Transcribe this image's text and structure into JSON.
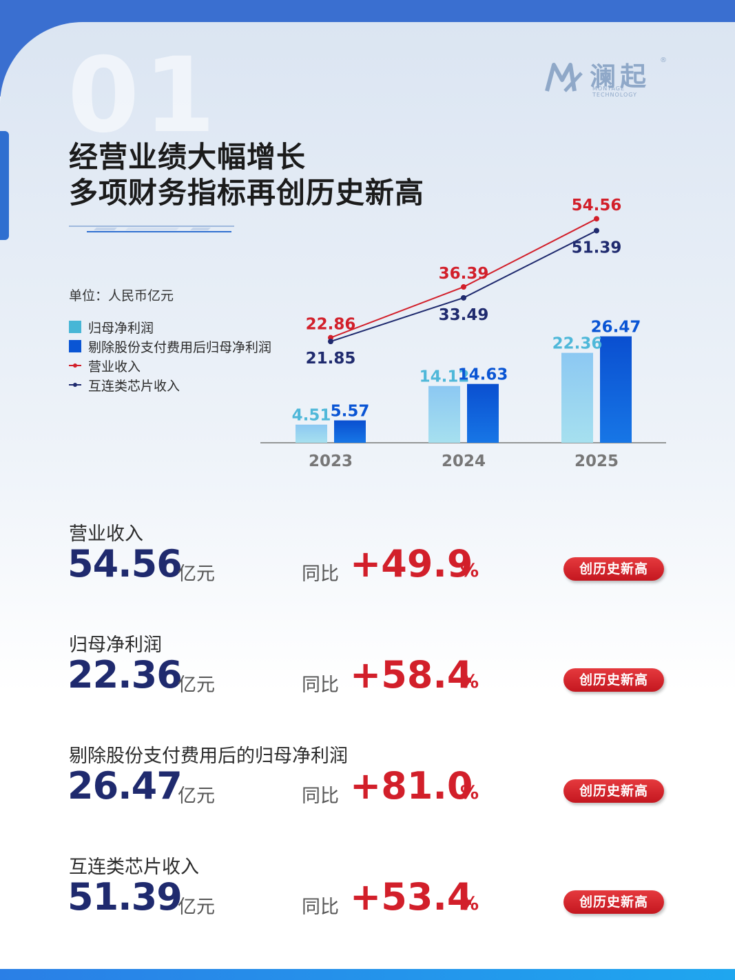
{
  "header": {
    "section_number": "01",
    "title_line1": "经营业绩大幅增长",
    "title_line2": "多项财务指标再创历史新高"
  },
  "logo": {
    "name_cn": "澜起",
    "name_en": "MONTAGE TECHNOLOGY",
    "reg_mark": "®"
  },
  "chart_data": {
    "type": "bar",
    "unit": "单位：人民币亿元",
    "categories": [
      "2023",
      "2024",
      "2025"
    ],
    "series": [
      {
        "name": "归母净利润",
        "kind": "bar",
        "color": "#7fc4ef",
        "values": [
          4.51,
          14.12,
          22.36
        ]
      },
      {
        "name": "剔除股份支付费用后归母净利润",
        "kind": "bar",
        "color": "#0a55d4",
        "values": [
          5.57,
          14.63,
          26.47
        ]
      },
      {
        "name": "营业收入",
        "kind": "line",
        "color": "#d21f2a",
        "values": [
          22.86,
          36.39,
          54.56
        ]
      },
      {
        "name": "互连类芯片收入",
        "kind": "line",
        "color": "#1f2a6e",
        "values": [
          21.85,
          33.49,
          51.39
        ]
      }
    ],
    "value_labels": {
      "bar_light": [
        "4.51",
        "14.12",
        "22.36"
      ],
      "bar_dark": [
        "5.57",
        "14.63",
        "26.47"
      ],
      "line_red": [
        "22.86",
        "36.39",
        "54.56"
      ],
      "line_navy": [
        "21.85",
        "33.49",
        "51.39"
      ]
    },
    "colors": {
      "bar_light_label": "#4fb8d9",
      "bar_dark_label": "#0a55d4",
      "axis": "#777777",
      "year_label": "#777777"
    },
    "legend_position": "left"
  },
  "metrics": [
    {
      "label": "营业收入",
      "value": "54.56",
      "unit": "亿元",
      "yoy_label": "同比",
      "yoy_value": "+49.9",
      "yoy_pct": "%",
      "badge": "创历史新高"
    },
    {
      "label": "归母净利润",
      "value": "22.36",
      "unit": "亿元",
      "yoy_label": "同比",
      "yoy_value": "+58.4",
      "yoy_pct": "%",
      "badge": "创历史新高"
    },
    {
      "label": "剔除股份支付费用后的归母净利润",
      "value": "26.47",
      "unit": "亿元",
      "yoy_label": "同比",
      "yoy_value": "+81.0",
      "yoy_pct": "%",
      "badge": "创历史新高"
    },
    {
      "label": "互连类芯片收入",
      "value": "51.39",
      "unit": "亿元",
      "yoy_label": "同比",
      "yoy_value": "+53.4",
      "yoy_pct": "%",
      "badge": "创历史新高"
    }
  ]
}
